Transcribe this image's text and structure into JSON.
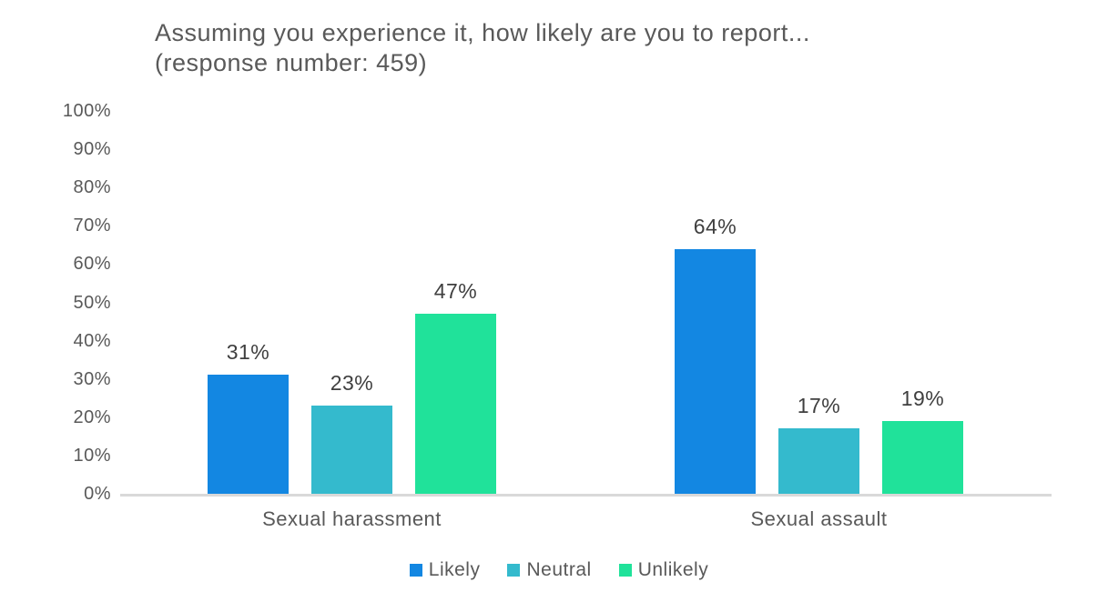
{
  "title": {
    "line1": "Assuming you experience it, how likely are you to report...",
    "line2": "(response number: 459)"
  },
  "chart_data": {
    "type": "bar",
    "title": "Assuming you experience it, how likely are you to report...",
    "subtitle": "(response number: 459)",
    "response_number": 459,
    "categories": [
      "Sexual harassment",
      "Sexual assault"
    ],
    "series": [
      {
        "name": "Likely",
        "color": "#1387E2",
        "values": [
          31,
          64
        ]
      },
      {
        "name": "Neutral",
        "color": "#34BACD",
        "values": [
          23,
          17
        ]
      },
      {
        "name": "Unlikely",
        "color": "#20E29A",
        "values": [
          47,
          19
        ]
      }
    ],
    "data_label_suffix": "%",
    "ylabel": "",
    "xlabel": "",
    "ylim": [
      0,
      100
    ],
    "y_ticks": [
      "0%",
      "10%",
      "20%",
      "30%",
      "40%",
      "50%",
      "60%",
      "70%",
      "80%",
      "90%",
      "100%"
    ],
    "grid": false,
    "legend_position": "bottom",
    "axis_line_color": "#d9d9d9",
    "text_color": "#595959",
    "data_label_color": "#3f3f3f"
  }
}
